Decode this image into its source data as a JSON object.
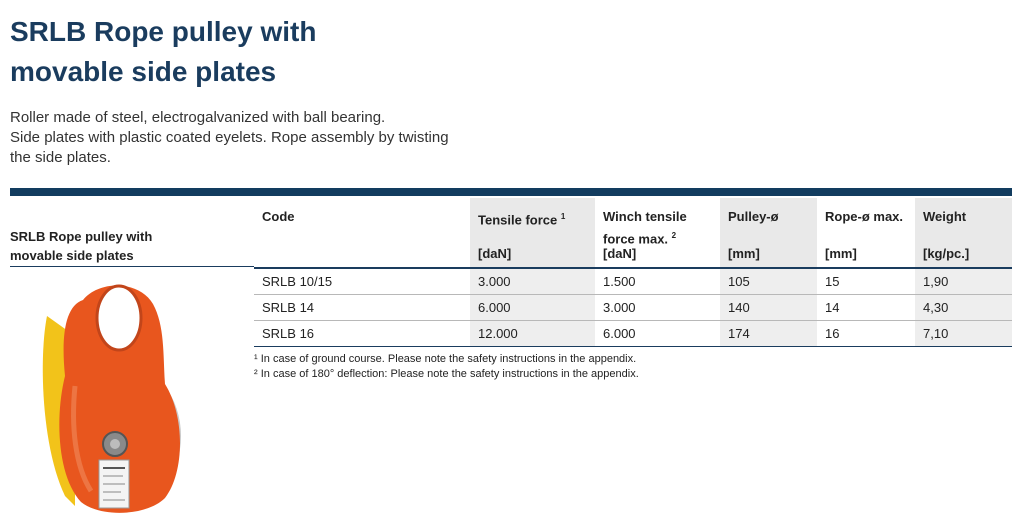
{
  "title": {
    "line1": "SRLB Rope pulley with",
    "line2": "movable side plates"
  },
  "description": {
    "line1": "Roller made of steel, electrogalvanized with ball bearing.",
    "line2": "Side plates with plastic coated eyelets. Rope assembly by twisting",
    "line3": "the side plates."
  },
  "product_label": {
    "line1": "SRLB Rope pulley with",
    "line2": "movable side plates"
  },
  "table": {
    "headers": [
      {
        "name": "Code",
        "sup": "",
        "unit": ""
      },
      {
        "name": "Tensile force",
        "sup": "1",
        "unit": "[daN]"
      },
      {
        "name": "Winch tensile force max.",
        "sup": "2",
        "unit": "[daN]"
      },
      {
        "name": "Pulley-ø",
        "sup": "",
        "unit": "[mm]"
      },
      {
        "name": "Rope-ø max.",
        "sup": "",
        "unit": "[mm]"
      },
      {
        "name": "Weight",
        "sup": "",
        "unit": "[kg/pc.]"
      }
    ],
    "rows": [
      [
        "SRLB 10/15",
        "3.000",
        "1.500",
        "105",
        "15",
        "1,90"
      ],
      [
        "SRLB 14",
        "6.000",
        "3.000",
        "140",
        "14",
        "4,30"
      ],
      [
        "SRLB 16",
        "12.000",
        "6.000",
        "174",
        "16",
        "7,10"
      ]
    ]
  },
  "footnotes": {
    "note1": "¹ In case of ground course. Please note the safety instructions in the appendix.",
    "note2": "² In case of 180° deflection: Please note the safety instructions in the appendix."
  },
  "colors": {
    "heading": "#1a3c5e",
    "bar": "#123c5f",
    "shade": "#e9e9e9",
    "pulley": "#e8561e",
    "plate_yellow": "#f2c31a"
  },
  "photo": {
    "icon": "rope-pulley-photo"
  }
}
